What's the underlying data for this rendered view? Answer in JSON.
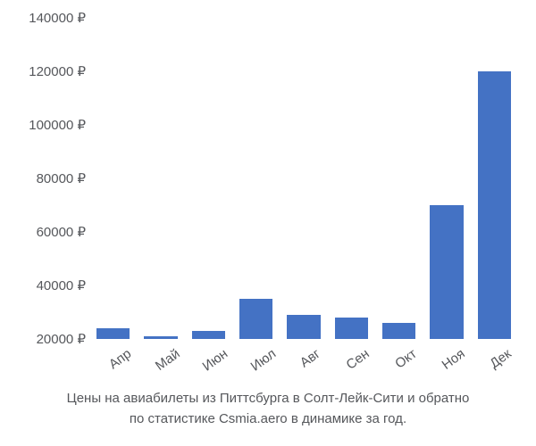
{
  "chart": {
    "type": "bar",
    "categories": [
      "Апр",
      "Май",
      "Июн",
      "Июл",
      "Авг",
      "Сен",
      "Окт",
      "Ноя",
      "Дек"
    ],
    "values": [
      24000,
      21000,
      23000,
      35000,
      29000,
      28000,
      26000,
      70000,
      120000
    ],
    "bar_color": "#4472c4",
    "ylim": [
      20000,
      140000
    ],
    "yticks": [
      20000,
      40000,
      60000,
      80000,
      100000,
      120000,
      140000
    ],
    "ytick_labels": [
      "20000 ₽",
      "40000 ₽",
      "60000 ₽",
      "80000 ₽",
      "100000 ₽",
      "120000 ₽",
      "140000 ₽"
    ],
    "background_color": "#ffffff",
    "label_color": "#55575b",
    "label_fontsize": 15,
    "bar_width": 0.7,
    "x_label_rotate_deg": -36
  },
  "caption": {
    "line1": "Цены на авиабилеты из Питтсбурга в Солт-Лейк-Сити и обратно",
    "line2": "по статистике Csmia.aero в динамике за год."
  }
}
